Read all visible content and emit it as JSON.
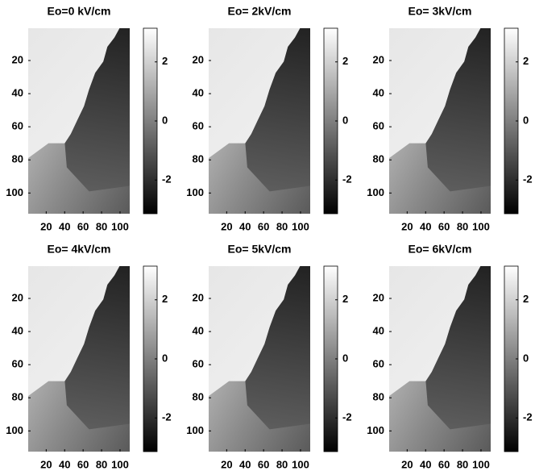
{
  "chart_data": [
    {
      "type": "image",
      "title": "Eo=0 kV/cm",
      "xlim": [
        0.5,
        110.5
      ],
      "ylim": [
        112.5,
        0.5
      ],
      "xticks": [
        20,
        40,
        60,
        80,
        100
      ],
      "yticks": [
        20,
        40,
        60,
        80,
        100
      ],
      "clim": [
        -3.14,
        3.14
      ],
      "cticks": [
        -2,
        0,
        2
      ]
    },
    {
      "type": "image",
      "title": "Eo= 2kV/cm",
      "xlim": [
        0.5,
        110.5
      ],
      "ylim": [
        112.5,
        0.5
      ],
      "xticks": [
        20,
        40,
        60,
        80,
        100
      ],
      "yticks": [
        20,
        40,
        60,
        80,
        100
      ],
      "clim": [
        -3.14,
        3.14
      ],
      "cticks": [
        -2,
        0,
        2
      ]
    },
    {
      "type": "image",
      "title": "Eo= 3kV/cm",
      "xlim": [
        0.5,
        110.5
      ],
      "ylim": [
        112.5,
        0.5
      ],
      "xticks": [
        20,
        40,
        60,
        80,
        100
      ],
      "yticks": [
        20,
        40,
        60,
        80,
        100
      ],
      "clim": [
        -3.14,
        3.14
      ],
      "cticks": [
        -2,
        0,
        2
      ]
    },
    {
      "type": "image",
      "title": "Eo= 4kV/cm",
      "xlim": [
        0.5,
        110.5
      ],
      "ylim": [
        112.5,
        0.5
      ],
      "xticks": [
        20,
        40,
        60,
        80,
        100
      ],
      "yticks": [
        20,
        40,
        60,
        80,
        100
      ],
      "clim": [
        -3.14,
        3.14
      ],
      "cticks": [
        -2,
        0,
        2
      ]
    },
    {
      "type": "image",
      "title": "Eo= 5kV/cm",
      "xlim": [
        0.5,
        110.5
      ],
      "ylim": [
        112.5,
        0.5
      ],
      "xticks": [
        20,
        40,
        60,
        80,
        100
      ],
      "yticks": [
        20,
        40,
        60,
        80,
        100
      ],
      "clim": [
        -3.14,
        3.14
      ],
      "cticks": [
        -2,
        0,
        2
      ]
    },
    {
      "type": "image",
      "title": "Eo= 6kV/cm",
      "xlim": [
        0.5,
        110.5
      ],
      "ylim": [
        112.5,
        0.5
      ],
      "xticks": [
        20,
        40,
        60,
        80,
        100
      ],
      "yticks": [
        20,
        40,
        60,
        80,
        100
      ],
      "clim": [
        -3.14,
        3.14
      ],
      "cticks": [
        -2,
        0,
        2
      ]
    }
  ]
}
